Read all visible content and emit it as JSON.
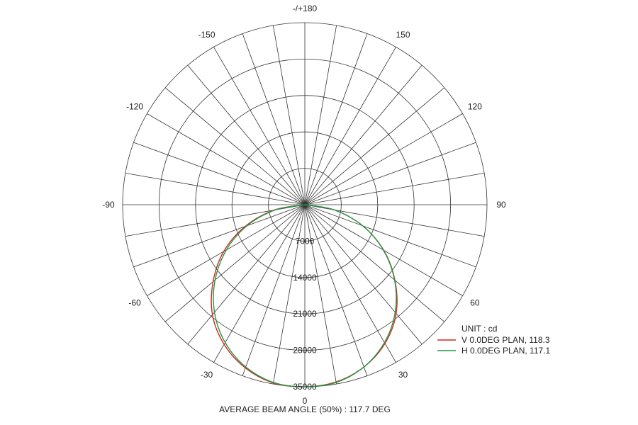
{
  "chart_data": {
    "type": "polar",
    "unit_label": "UNIT : cd",
    "caption": "AVERAGE BEAM ANGLE (50%) : 117.7 DEG",
    "r_max": 35000,
    "rings": [
      7000,
      14000,
      21000,
      28000,
      35000
    ],
    "ring_labels": [
      "7000",
      "14000",
      "21000",
      "28000",
      "35000"
    ],
    "angle_labels": [
      {
        "deg": 0,
        "text": "0"
      },
      {
        "deg": 30,
        "text": "30"
      },
      {
        "deg": 60,
        "text": "60"
      },
      {
        "deg": 90,
        "text": "90"
      },
      {
        "deg": 120,
        "text": "120"
      },
      {
        "deg": 150,
        "text": "150"
      },
      {
        "deg": 180,
        "text": "-/+180"
      },
      {
        "deg": -30,
        "text": "-30"
      },
      {
        "deg": -60,
        "text": "-60"
      },
      {
        "deg": -90,
        "text": "-90"
      },
      {
        "deg": -120,
        "text": "-120"
      },
      {
        "deg": -150,
        "text": "-150"
      }
    ],
    "spoke_step_deg": 10,
    "series": [
      {
        "name": "V 0.0DEG PLAN, 118.3",
        "color": "#d9261c",
        "angles": [
          -90,
          -80,
          -70,
          -60,
          -50,
          -40,
          -30,
          -20,
          -10,
          0,
          10,
          20,
          30,
          40,
          50,
          60,
          70,
          80,
          90
        ],
        "values": [
          0,
          6000,
          12200,
          18000,
          23000,
          27600,
          31000,
          33400,
          34800,
          35000,
          34600,
          33200,
          30800,
          27300,
          22600,
          17500,
          11800,
          5800,
          0
        ]
      },
      {
        "name": "H 0.0DEG PLAN, 117.1",
        "color": "#1f9a48",
        "angles": [
          -90,
          -80,
          -70,
          -60,
          -50,
          -40,
          -30,
          -20,
          -10,
          0,
          10,
          20,
          30,
          40,
          50,
          60,
          70,
          80,
          90
        ],
        "values": [
          0,
          5700,
          11800,
          17400,
          22500,
          27000,
          30600,
          33200,
          34700,
          35000,
          34700,
          33200,
          30600,
          27000,
          22500,
          17400,
          11800,
          5700,
          0
        ]
      }
    ]
  }
}
